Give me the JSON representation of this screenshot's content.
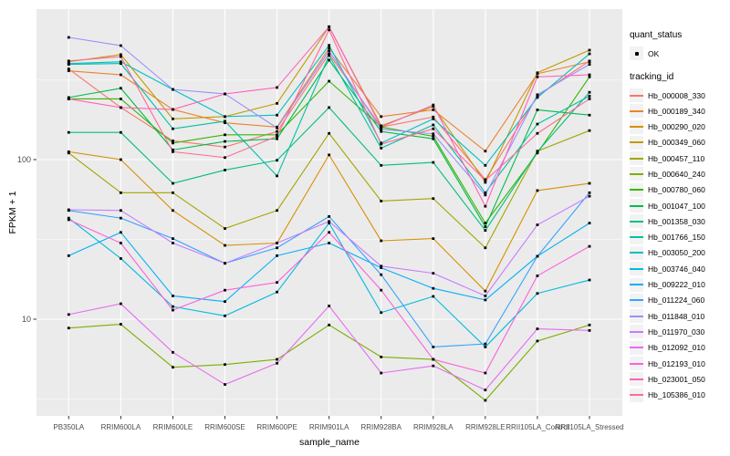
{
  "chart_data": {
    "type": "line",
    "title": "",
    "xlabel": "sample_name",
    "ylabel": "FPKM + 1",
    "y_scale": "log10",
    "ylim": [
      2.4,
      850
    ],
    "grid": true,
    "legend_position": "right",
    "y_ticks": [
      {
        "value": 100,
        "label": "100"
      },
      {
        "value": 10,
        "label": "10"
      }
    ],
    "y_minor_ticks": [
      316.2,
      31.62,
      3.162
    ],
    "categories": [
      "PB350LA",
      "RRIM600LA",
      "RRIM600LE",
      "RRIM600SE",
      "RRIM600PE",
      "RRIM901LA",
      "RRIM928BA",
      "RRIM928LA",
      "RRIM928LE",
      "RRII105LA_Control",
      "RRII105LA_Stressed"
    ],
    "point_symbol": "small-black-square",
    "legend": {
      "quant_status_title": "quant_status",
      "quant_status_items": [
        {
          "label": "OK",
          "symbol": "point",
          "color": "#000000"
        }
      ],
      "tracking_id_title": "tracking_id"
    },
    "series": [
      {
        "name": "Hb_000008_330",
        "color": "#F8766D",
        "values": [
          370,
          212,
          131,
          120,
          150,
          460,
          160,
          185,
          75,
          250,
          415
        ]
      },
      {
        "name": "Hb_000189_340",
        "color": "#EA8331",
        "values": [
          360,
          340,
          206,
          170,
          160,
          500,
          186,
          205,
          113,
          345,
          410
        ]
      },
      {
        "name": "Hb_000290_020",
        "color": "#D89000",
        "values": [
          112,
          100,
          48,
          29,
          30,
          107,
          31,
          32,
          15,
          64,
          71
        ]
      },
      {
        "name": "Hb_000349_060",
        "color": "#C09B00",
        "values": [
          410,
          455,
          180,
          186,
          225,
          680,
          163,
          215,
          72,
          350,
          485
        ]
      },
      {
        "name": "Hb_000457_110",
        "color": "#A3A500",
        "values": [
          110,
          62,
          62,
          37,
          48,
          146,
          55,
          57,
          28,
          113,
          152
        ]
      },
      {
        "name": "Hb_000640_240",
        "color": "#7CAE00",
        "values": [
          8.8,
          9.3,
          5.0,
          5.2,
          5.6,
          9.2,
          5.8,
          5.6,
          3.1,
          7.3,
          9.2
        ]
      },
      {
        "name": "Hb_000780_060",
        "color": "#39B600",
        "values": [
          240,
          240,
          127,
          143,
          143,
          310,
          160,
          140,
          40,
          110,
          330
        ]
      },
      {
        "name": "Hb_001047_100",
        "color": "#00BB4E",
        "values": [
          245,
          280,
          115,
          130,
          135,
          420,
          150,
          135,
          38,
          205,
          190
        ]
      },
      {
        "name": "Hb_001358_030",
        "color": "#00BF7D",
        "values": [
          148,
          148,
          71,
          86,
          99,
          212,
          92,
          96,
          36,
          112,
          264
        ]
      },
      {
        "name": "Hb_001766_150",
        "color": "#00C1A3",
        "values": [
          395,
          400,
          156,
          174,
          79,
          450,
          118,
          165,
          62,
          167,
          250
        ]
      },
      {
        "name": "Hb_003050_200",
        "color": "#00BFC4",
        "values": [
          400,
          410,
          275,
          186,
          190,
          520,
          127,
          180,
          92,
          245,
          460
        ]
      },
      {
        "name": "Hb_003746_040",
        "color": "#00BAE0",
        "values": [
          43,
          24,
          12,
          10.5,
          14.8,
          40,
          11,
          13.9,
          6.7,
          14.5,
          17.6
        ]
      },
      {
        "name": "Hb_009222_010",
        "color": "#00B0F6",
        "values": [
          25,
          35,
          14,
          12.9,
          25,
          30,
          21,
          15.6,
          13.2,
          24.8,
          40
        ]
      },
      {
        "name": "Hb_011224_060",
        "color": "#35A2FF",
        "values": [
          48,
          43,
          32,
          22.4,
          28,
          44,
          19,
          6.7,
          7.0,
          24.8,
          62
        ]
      },
      {
        "name": "Hb_011848_010",
        "color": "#9590FF",
        "values": [
          583,
          518,
          275,
          258,
          158,
          480,
          155,
          145,
          60,
          255,
          395
        ]
      },
      {
        "name": "Hb_011970_030",
        "color": "#C77CFF",
        "values": [
          48.5,
          48,
          30,
          22.4,
          30,
          41,
          21.5,
          19.4,
          14,
          39,
          59
        ]
      },
      {
        "name": "Hb_012092_010",
        "color": "#E76BF3",
        "values": [
          10.7,
          12.5,
          6.2,
          3.9,
          5.3,
          12.1,
          4.6,
          5.1,
          3.6,
          8.7,
          8.5
        ]
      },
      {
        "name": "Hb_012193_010",
        "color": "#FA62DB",
        "values": [
          42,
          30,
          11.4,
          15.2,
          17,
          35,
          15.2,
          5.6,
          4.6,
          18.7,
          28.6
        ]
      },
      {
        "name": "Hb_023001_050",
        "color": "#FF62BC",
        "values": [
          240,
          212,
          206,
          258,
          283,
          680,
          160,
          220,
          51,
          330,
          340
        ]
      },
      {
        "name": "Hb_105386_010",
        "color": "#FF6A98",
        "values": [
          415,
          442,
          112,
          103,
          140,
          650,
          125,
          156,
          74,
          146,
          240
        ]
      }
    ]
  },
  "style_colors": {
    "panel_bg": "#EBEBEB",
    "gridline": "#FFFFFF",
    "legend_key_bg": "#F2F2F2",
    "tick_mark": "#333333",
    "tick_text": "#4D4D4D",
    "axis_title_text": "#000000",
    "point": "#000000"
  }
}
